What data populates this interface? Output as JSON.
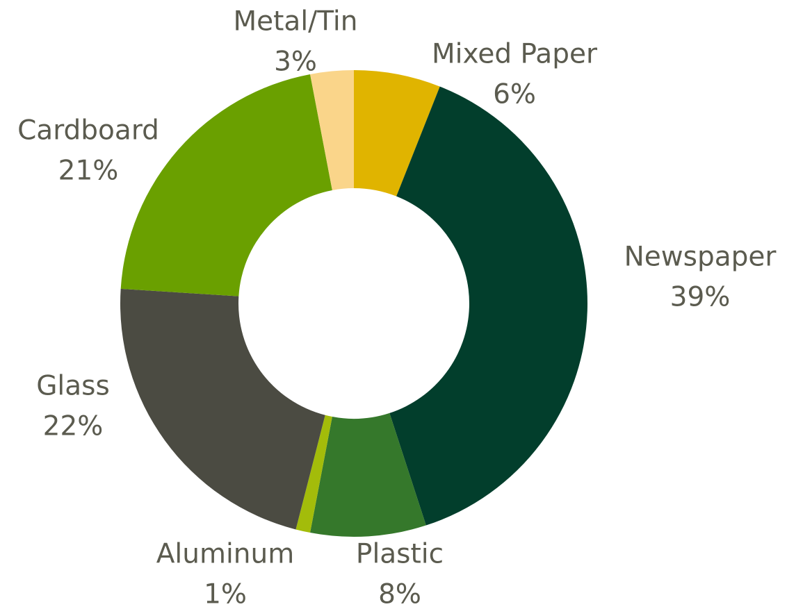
{
  "chart_data": {
    "type": "pie",
    "variant": "donut",
    "title": "",
    "slices": [
      {
        "label": "Mixed Paper",
        "value": 6,
        "display": "6%",
        "color": "#e0b400"
      },
      {
        "label": "Newspaper",
        "value": 39,
        "display": "39%",
        "color": "#023e2c"
      },
      {
        "label": "Plastic",
        "value": 8,
        "display": "8%",
        "color": "#35782b"
      },
      {
        "label": "Aluminum",
        "value": 1,
        "display": "1%",
        "color": "#a3bc0a"
      },
      {
        "label": "Glass",
        "value": 22,
        "display": "22%",
        "color": "#4b4b42"
      },
      {
        "label": "Cardboard",
        "value": 21,
        "display": "21%",
        "color": "#6aa000"
      },
      {
        "label": "Metal/Tin",
        "value": 3,
        "display": "3%",
        "color": "#fad58a"
      }
    ],
    "label_color": "#5b5b4f",
    "legend": "none"
  }
}
